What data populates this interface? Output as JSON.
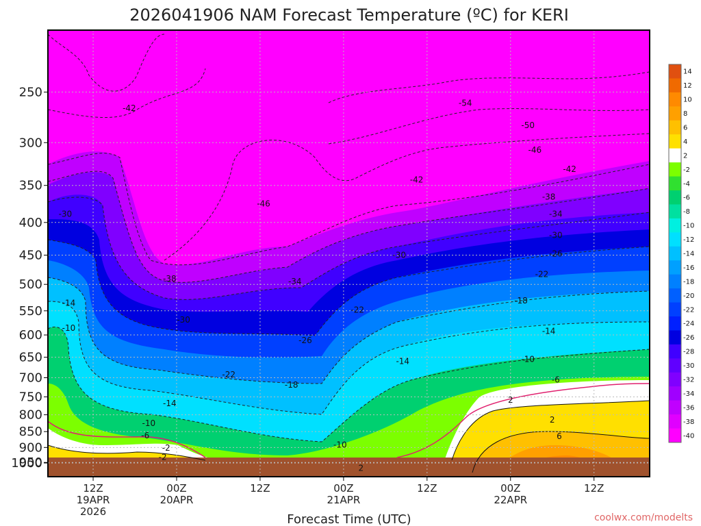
{
  "chart_data": {
    "type": "heatmap",
    "title": "2026041906 NAM Forecast Temperature (ºC) for KERI",
    "xlabel": "Forecast Time (UTC)",
    "ylabel": "",
    "credit": "coolwx.com/modelts",
    "y_scale": "log",
    "ylim": [
      1000,
      200
    ],
    "y_ticks": [
      "250",
      "300",
      "350",
      "400",
      "450",
      "500",
      "550",
      "600",
      "650",
      "700",
      "750",
      "800",
      "850",
      "900",
      "950",
      "1000"
    ],
    "x_ticks": [
      {
        "l1": "12Z",
        "l2": "19APR",
        "l3": "2026",
        "h": 12
      },
      {
        "l1": "00Z",
        "l2": "20APR",
        "l3": "",
        "h": 24
      },
      {
        "l1": "12Z",
        "l2": "",
        "l3": "",
        "h": 36
      },
      {
        "l1": "00Z",
        "l2": "21APR",
        "l3": "",
        "h": 48
      },
      {
        "l1": "12Z",
        "l2": "",
        "l3": "",
        "h": 60
      },
      {
        "l1": "00Z",
        "l2": "22APR",
        "l3": "",
        "h": 72
      },
      {
        "l1": "12Z",
        "l2": "",
        "l3": "",
        "h": 84
      }
    ],
    "xlim_hours": [
      5.5,
      92
    ],
    "colorbar_labels": [
      "14",
      "12",
      "10",
      "8",
      "6",
      "4",
      "2",
      "-2",
      "-4",
      "-6",
      "-8",
      "-10",
      "-12",
      "-14",
      "-16",
      "-18",
      "-20",
      "-22",
      "-24",
      "-26",
      "-28",
      "-30",
      "-32",
      "-34",
      "-36",
      "-38",
      "-40"
    ],
    "colorbar_colors": [
      "#e05010",
      "#f06a00",
      "#ff8a00",
      "#ffa000",
      "#ffc000",
      "#ffe000",
      "#ffffff",
      "#7cff00",
      "#30e030",
      "#00d070",
      "#00e0a0",
      "#00f0e0",
      "#00e0ff",
      "#00c0ff",
      "#00a0ff",
      "#0080ff",
      "#0060ff",
      "#0040ff",
      "#0020ff",
      "#0000e0",
      "#4000ff",
      "#6000ff",
      "#8000ff",
      "#a000ff",
      "#c000ff",
      "#e000ff",
      "#ff00ff"
    ],
    "contour_labels": [
      {
        "t": "-42",
        "h": 17.2,
        "p": 265
      },
      {
        "t": "-54",
        "h": 65.5,
        "p": 260
      },
      {
        "t": "-50",
        "h": 74.5,
        "p": 282
      },
      {
        "t": "-46",
        "h": 75.5,
        "p": 308
      },
      {
        "t": "-42",
        "h": 80.5,
        "p": 330
      },
      {
        "t": "-42",
        "h": 58.5,
        "p": 343
      },
      {
        "t": "-38",
        "h": 77.5,
        "p": 365
      },
      {
        "t": "-46",
        "h": 36.5,
        "p": 374
      },
      {
        "t": "-34",
        "h": 78.5,
        "p": 388
      },
      {
        "t": "-30",
        "h": 8,
        "p": 388
      },
      {
        "t": "-30",
        "h": 78.5,
        "p": 419
      },
      {
        "t": "-26",
        "h": 78.5,
        "p": 448
      },
      {
        "t": "-30",
        "h": 56,
        "p": 450
      },
      {
        "t": "-22",
        "h": 76.5,
        "p": 482
      },
      {
        "t": "-38",
        "h": 23,
        "p": 490
      },
      {
        "t": "-34",
        "h": 41,
        "p": 495
      },
      {
        "t": "-18",
        "h": 73.5,
        "p": 530
      },
      {
        "t": "-14",
        "h": 8.5,
        "p": 535
      },
      {
        "t": "-22",
        "h": 50,
        "p": 548
      },
      {
        "t": "-30",
        "h": 25,
        "p": 568
      },
      {
        "t": "-10",
        "h": 8.5,
        "p": 585
      },
      {
        "t": "-14",
        "h": 77.5,
        "p": 592
      },
      {
        "t": "-26",
        "h": 42.5,
        "p": 612
      },
      {
        "t": "-10",
        "h": 74.5,
        "p": 655
      },
      {
        "t": "-14",
        "h": 56.5,
        "p": 660
      },
      {
        "t": "-22",
        "h": 31.5,
        "p": 692
      },
      {
        "t": "-6",
        "h": 78.5,
        "p": 705
      },
      {
        "t": "-18",
        "h": 40.5,
        "p": 718
      },
      {
        "t": "2",
        "h": 72,
        "p": 758
      },
      {
        "t": "-14",
        "h": 23,
        "p": 768
      },
      {
        "t": "2",
        "h": 78,
        "p": 815
      },
      {
        "t": "-10",
        "h": 20,
        "p": 825
      },
      {
        "t": "-6",
        "h": 19.5,
        "p": 862
      },
      {
        "t": "6",
        "h": 79,
        "p": 865
      },
      {
        "t": "-10",
        "h": 47.5,
        "p": 892
      },
      {
        "t": "-2",
        "h": 22.5,
        "p": 902
      },
      {
        "t": "-2",
        "h": 22,
        "p": 932
      },
      {
        "t": "2",
        "h": 50.5,
        "p": 970
      }
    ]
  }
}
